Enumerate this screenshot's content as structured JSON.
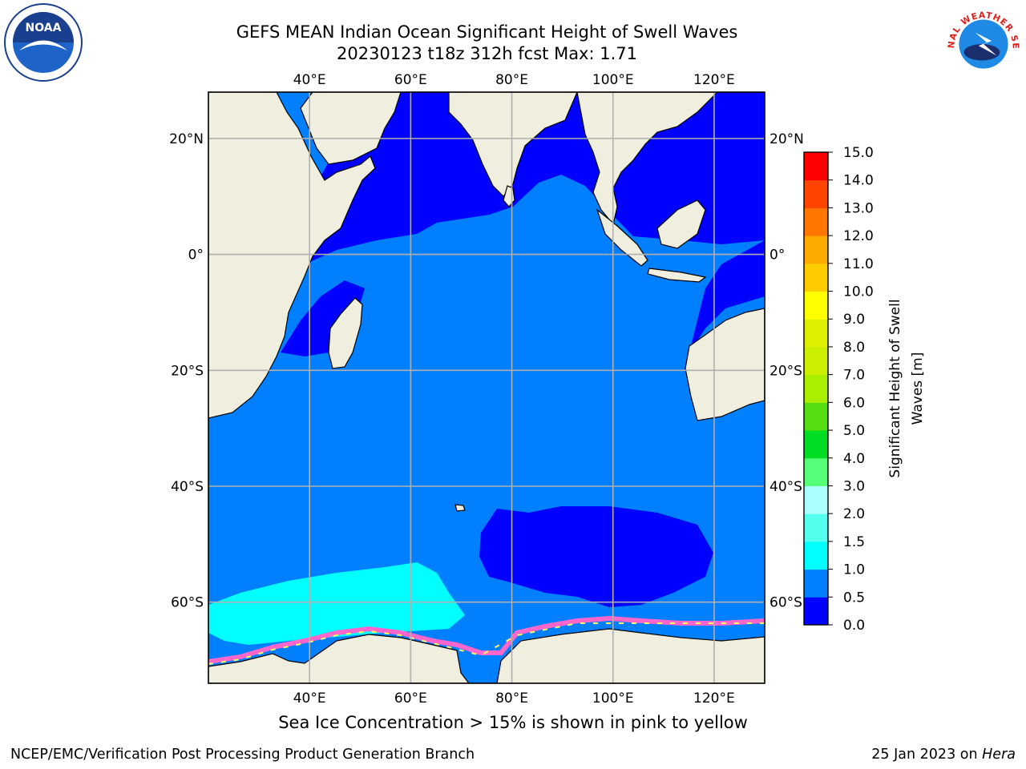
{
  "header": {
    "title_line1": "GEFS MEAN Indian Ocean Significant Height of Swell Waves",
    "title_line2": "20230123 t18z 312h fcst   Max: 1.71"
  },
  "logos": {
    "left": {
      "name": "noaa-logo",
      "text": "NOAA"
    },
    "right": {
      "name": "national-weather-service-logo",
      "text": "NATIONAL WEATHER SERVICE"
    }
  },
  "map": {
    "lon_range": [
      20,
      130
    ],
    "lat_range": [
      -74,
      28
    ],
    "lon_ticks": [
      {
        "value": 40,
        "label": "40°E"
      },
      {
        "value": 60,
        "label": "60°E"
      },
      {
        "value": 80,
        "label": "80°E"
      },
      {
        "value": 100,
        "label": "100°E"
      },
      {
        "value": 120,
        "label": "120°E"
      }
    ],
    "lat_ticks": [
      {
        "value": 20,
        "label": "20°N"
      },
      {
        "value": 0,
        "label": "0°"
      },
      {
        "value": -20,
        "label": "20°S"
      },
      {
        "value": -40,
        "label": "40°S"
      },
      {
        "value": -60,
        "label": "60°S"
      }
    ],
    "grid": true,
    "colors": {
      "land": "#efeedf",
      "swell_0_0.5": "#0000ff",
      "swell_0.5_1.0": "#007fff",
      "swell_1.0_1.5": "#00ffff",
      "sea_ice": "#ff66cc",
      "ice_edge_yellow": "#ffff66",
      "grid": "#b0b0b0"
    }
  },
  "colorbar": {
    "label": "Significant Height of Swell Waves [m]",
    "levels": [
      {
        "value": "0.0",
        "color": "#0000ff"
      },
      {
        "value": "0.5",
        "color": "#007fff"
      },
      {
        "value": "1.0",
        "color": "#00ffff"
      },
      {
        "value": "1.5",
        "color": "#55ffee"
      },
      {
        "value": "2.0",
        "color": "#aaffff"
      },
      {
        "value": "3.0",
        "color": "#55ff77"
      },
      {
        "value": "4.0",
        "color": "#00dd22"
      },
      {
        "value": "5.0",
        "color": "#55dd11"
      },
      {
        "value": "6.0",
        "color": "#aaee00"
      },
      {
        "value": "7.0",
        "color": "#ccee00"
      },
      {
        "value": "8.0",
        "color": "#ddf000"
      },
      {
        "value": "9.0",
        "color": "#ffff00"
      },
      {
        "value": "10.0",
        "color": "#ffcc00"
      },
      {
        "value": "11.0",
        "color": "#ffaa00"
      },
      {
        "value": "12.0",
        "color": "#ff7700"
      },
      {
        "value": "13.0",
        "color": "#ff4400"
      },
      {
        "value": "14.0",
        "color": "#ff0000"
      },
      {
        "value": "15.0",
        "color": null
      }
    ]
  },
  "caption": "Sea Ice Concentration > 15% is shown in pink to yellow",
  "footer": {
    "left": "NCEP/EMC/Verification Post Processing Product Generation Branch",
    "right_prefix": "25 Jan 2023 on ",
    "right_host": "Hera"
  }
}
